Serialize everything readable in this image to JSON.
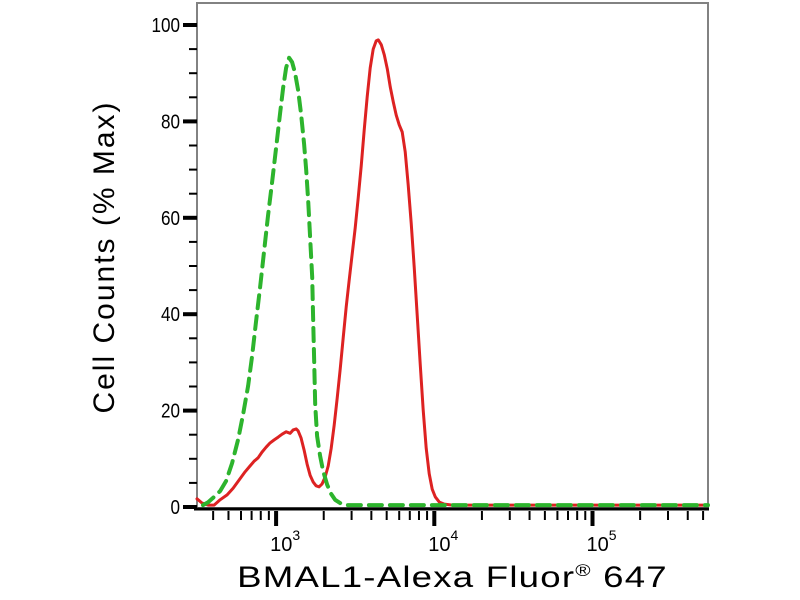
{
  "figure": {
    "background": "#ffffff"
  },
  "colors": {
    "red_curve": "#dd2222",
    "green_curve": "#2db42d",
    "frame": "#828282",
    "axis": "#000000",
    "text": "#000000"
  },
  "chart_data": {
    "type": "line",
    "title": "",
    "xlabel": "BMAL1-Alexa Fluor® 647",
    "xlabel_parts": {
      "main": "BMAL1-Alexa Fluor",
      "sup": "®",
      "suffix": " 647"
    },
    "ylabel": "Cell Counts (% Max)",
    "grid": false,
    "legend": "none",
    "y_axis": {
      "lim": [
        0,
        100
      ],
      "ticks": [
        0,
        20,
        40,
        60,
        80,
        100
      ],
      "minor_step": 5
    },
    "x_axis": {
      "scale": "log10",
      "range_log10": [
        2.5,
        5.73
      ],
      "tick_base": "10",
      "tick_exponents": [
        3,
        4,
        5
      ],
      "major_tick_values": [
        1000,
        10000,
        100000
      ],
      "minor_multiples": [
        2,
        3,
        4,
        5,
        6,
        7,
        8,
        9
      ]
    },
    "series": [
      {
        "name": "red-solid-histogram",
        "style": "solid",
        "color": "#dd2222",
        "points_log10x_pct": [
          [
            2.5,
            1.7
          ],
          [
            2.532,
            0.8
          ],
          [
            2.57,
            0.4
          ],
          [
            2.608,
            0.4
          ],
          [
            2.646,
            1.5
          ],
          [
            2.69,
            2.5
          ],
          [
            2.728,
            3.9
          ],
          [
            2.766,
            5.6
          ],
          [
            2.804,
            7.3
          ],
          [
            2.835,
            8.5
          ],
          [
            2.861,
            9.5
          ],
          [
            2.886,
            10.2
          ],
          [
            2.911,
            11.4
          ],
          [
            2.937,
            12.4
          ],
          [
            2.962,
            13.3
          ],
          [
            2.987,
            13.9
          ],
          [
            3.013,
            14.5
          ],
          [
            3.038,
            15.1
          ],
          [
            3.063,
            15.6
          ],
          [
            3.089,
            15.3
          ],
          [
            3.108,
            16.0
          ],
          [
            3.127,
            16.2
          ],
          [
            3.139,
            15.8
          ],
          [
            3.158,
            14.3
          ],
          [
            3.177,
            11.8
          ],
          [
            3.196,
            8.9
          ],
          [
            3.215,
            6.6
          ],
          [
            3.234,
            5.2
          ],
          [
            3.253,
            4.4
          ],
          [
            3.272,
            4.2
          ],
          [
            3.291,
            4.8
          ],
          [
            3.31,
            6.2
          ],
          [
            3.329,
            8.5
          ],
          [
            3.348,
            12.2
          ],
          [
            3.367,
            17.0
          ],
          [
            3.386,
            22.6
          ],
          [
            3.405,
            28.6
          ],
          [
            3.424,
            35.1
          ],
          [
            3.443,
            41.5
          ],
          [
            3.462,
            47.1
          ],
          [
            3.481,
            52.5
          ],
          [
            3.5,
            57.9
          ],
          [
            3.519,
            64.1
          ],
          [
            3.538,
            70.7
          ],
          [
            3.557,
            78.2
          ],
          [
            3.576,
            85.1
          ],
          [
            3.595,
            91.1
          ],
          [
            3.614,
            95.0
          ],
          [
            3.633,
            96.7
          ],
          [
            3.646,
            96.9
          ],
          [
            3.665,
            95.9
          ],
          [
            3.684,
            93.8
          ],
          [
            3.703,
            90.9
          ],
          [
            3.722,
            87.1
          ],
          [
            3.741,
            84.0
          ],
          [
            3.759,
            81.3
          ],
          [
            3.778,
            79.3
          ],
          [
            3.797,
            77.8
          ],
          [
            3.816,
            73.7
          ],
          [
            3.835,
            66.8
          ],
          [
            3.854,
            58.9
          ],
          [
            3.873,
            49.8
          ],
          [
            3.892,
            39.8
          ],
          [
            3.911,
            29.7
          ],
          [
            3.93,
            20.1
          ],
          [
            3.949,
            12.2
          ],
          [
            3.968,
            6.9
          ],
          [
            3.987,
            3.7
          ],
          [
            4.006,
            2.1
          ],
          [
            4.032,
            1.0
          ],
          [
            4.063,
            0.6
          ],
          [
            4.114,
            0.4
          ],
          [
            5.73,
            0.4
          ]
        ]
      },
      {
        "name": "green-dashed-histogram",
        "style": "dashed",
        "color": "#2db42d",
        "points_log10x_pct": [
          [
            2.538,
            0.4
          ],
          [
            2.57,
            1.0
          ],
          [
            2.608,
            2.1
          ],
          [
            2.646,
            3.3
          ],
          [
            2.684,
            5.4
          ],
          [
            2.722,
            9.1
          ],
          [
            2.759,
            13.9
          ],
          [
            2.791,
            19.1
          ],
          [
            2.823,
            25.1
          ],
          [
            2.848,
            31.3
          ],
          [
            2.873,
            38.4
          ],
          [
            2.899,
            45.6
          ],
          [
            2.924,
            53.1
          ],
          [
            2.949,
            60.4
          ],
          [
            2.975,
            67.4
          ],
          [
            3.0,
            74.5
          ],
          [
            3.025,
            81.7
          ],
          [
            3.044,
            86.9
          ],
          [
            3.063,
            91.1
          ],
          [
            3.082,
            93.2
          ],
          [
            3.101,
            92.3
          ],
          [
            3.12,
            90.0
          ],
          [
            3.139,
            86.5
          ],
          [
            3.158,
            81.5
          ],
          [
            3.177,
            75.3
          ],
          [
            3.19,
            69.9
          ],
          [
            3.203,
            63.5
          ],
          [
            3.215,
            56.0
          ],
          [
            3.228,
            47.7
          ],
          [
            3.234,
            39.4
          ],
          [
            3.241,
            30.1
          ],
          [
            3.247,
            21.2
          ],
          [
            3.259,
            14.7
          ],
          [
            3.278,
            10.6
          ],
          [
            3.297,
            7.5
          ],
          [
            3.323,
            4.6
          ],
          [
            3.348,
            2.7
          ],
          [
            3.373,
            1.5
          ],
          [
            3.405,
            0.8
          ],
          [
            3.449,
            0.4
          ],
          [
            5.73,
            0.4
          ]
        ]
      }
    ]
  }
}
